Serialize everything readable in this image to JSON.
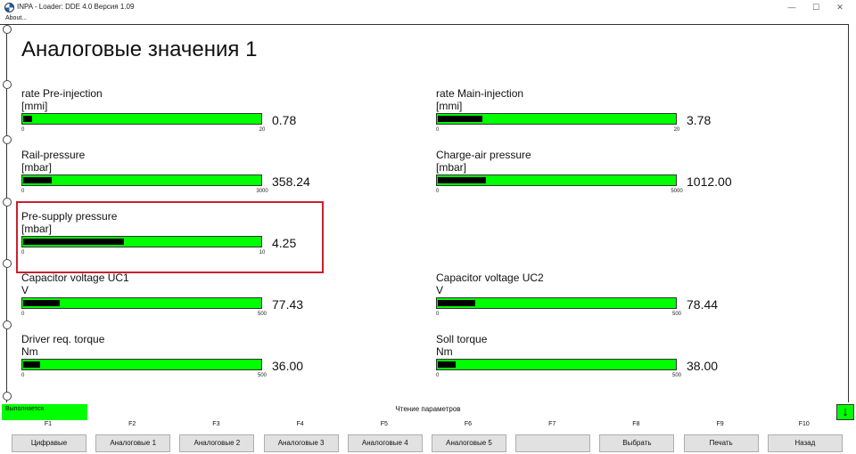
{
  "window": {
    "title": "INPA - Loader:  DDE 4.0 Версия 1.09",
    "menu_about": "About..."
  },
  "page": {
    "title": "Аналоговые значения 1"
  },
  "gauges": [
    {
      "label": "rate Pre-injection",
      "unit": "[mmi]",
      "value": "0.78",
      "min": "0",
      "max": "20",
      "fraction": 0.039
    },
    {
      "label": "rate Main-injection",
      "unit": "[mmi]",
      "value": "3.78",
      "min": "0",
      "max": "20",
      "fraction": 0.189
    },
    {
      "label": "Rail-pressure",
      "unit": "[mbar]",
      "value": "358.24",
      "min": "0",
      "max": "3000",
      "fraction": 0.119
    },
    {
      "label": "Charge-air pressure",
      "unit": "[mbar]",
      "value": "1012.00",
      "min": "0",
      "max": "5000",
      "fraction": 0.202
    },
    {
      "label": "Pre-supply pressure",
      "unit": "[mbar]",
      "value": "4.25",
      "min": "0",
      "max": "10",
      "fraction": 0.425
    },
    {
      "label": "Capacitor voltage UC1",
      "unit": "V",
      "value": "77.43",
      "min": "0",
      "max": "500",
      "fraction": 0.155
    },
    {
      "label": "Capacitor voltage UC2",
      "unit": "V",
      "value": "78.44",
      "min": "0",
      "max": "500",
      "fraction": 0.157
    },
    {
      "label": "Driver req. torque",
      "unit": "Nm",
      "value": "36.00",
      "min": "0",
      "max": "500",
      "fraction": 0.072
    },
    {
      "label": "Soll torque",
      "unit": "Nm",
      "value": "38.00",
      "min": "0",
      "max": "500",
      "fraction": 0.076
    }
  ],
  "status": {
    "running": "Выполняется",
    "message": "Чтение параметров",
    "arrow": "↓"
  },
  "fkeys": [
    {
      "key": "F1",
      "label": "Цифравые"
    },
    {
      "key": "F2",
      "label": "Аналоговые 1"
    },
    {
      "key": "F3",
      "label": "Аналоговые 2"
    },
    {
      "key": "F4",
      "label": "Аналоговые 3"
    },
    {
      "key": "F5",
      "label": "Аналоговые 4"
    },
    {
      "key": "F6",
      "label": "Аналоговые 5"
    },
    {
      "key": "F7",
      "label": ""
    },
    {
      "key": "F8",
      "label": "Выбрать"
    },
    {
      "key": "F9",
      "label": "Печать"
    },
    {
      "key": "F10",
      "label": "Назад"
    }
  ],
  "colors": {
    "bar_green": "#00ff00",
    "highlight_red": "#cc1f2f"
  }
}
